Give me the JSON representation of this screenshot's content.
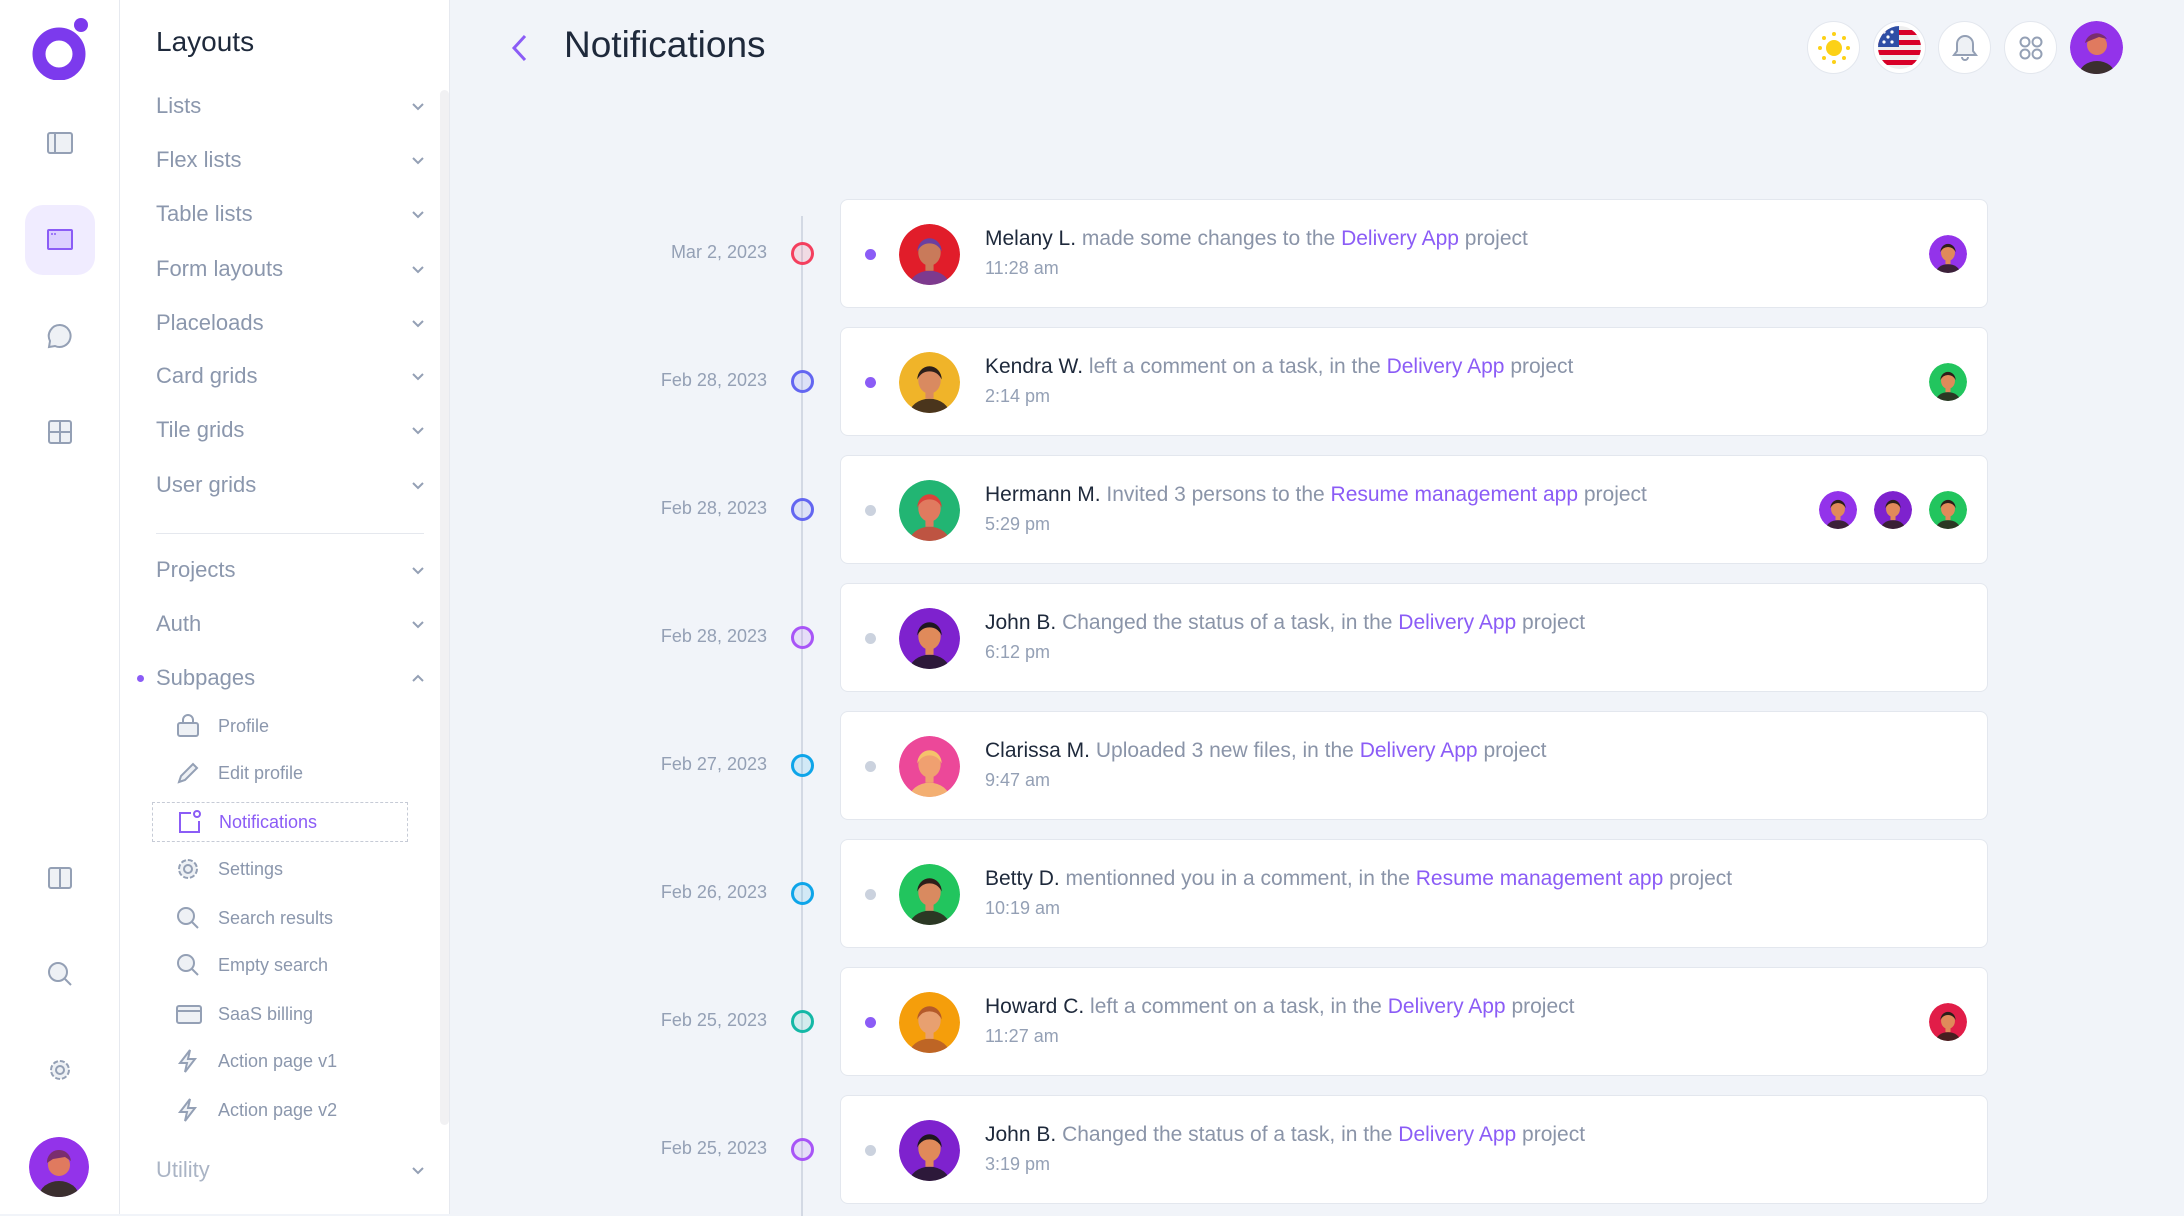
{
  "sidebar": {
    "title": "Layouts",
    "items": [
      {
        "label": "Lists"
      },
      {
        "label": "Flex lists"
      },
      {
        "label": "Table lists"
      },
      {
        "label": "Form layouts"
      },
      {
        "label": "Placeloads"
      },
      {
        "label": "Card grids"
      },
      {
        "label": "Tile grids"
      },
      {
        "label": "User grids"
      }
    ],
    "items2": [
      {
        "label": "Projects"
      },
      {
        "label": "Auth"
      },
      {
        "label": "Subpages"
      }
    ],
    "subpages": [
      {
        "label": "Profile",
        "icon": "lock-icon"
      },
      {
        "label": "Edit profile",
        "icon": "pencil-icon"
      },
      {
        "label": "Notifications",
        "icon": "notification-icon",
        "active": true
      },
      {
        "label": "Settings",
        "icon": "gear-icon"
      },
      {
        "label": "Search results",
        "icon": "search-icon"
      },
      {
        "label": "Empty search",
        "icon": "search-icon"
      },
      {
        "label": "SaaS billing",
        "icon": "credit-card-icon"
      },
      {
        "label": "Action page v1",
        "icon": "lightning-icon"
      },
      {
        "label": "Action page v2",
        "icon": "lightning-icon"
      }
    ],
    "utility": "Utility"
  },
  "header": {
    "title": "Notifications",
    "icons": [
      "sun-icon",
      "us-flag-icon",
      "bell-icon",
      "apps-icon",
      "user-avatar"
    ]
  },
  "colors": {
    "accent": "#8b5cf6",
    "unread": "#8b5cf6",
    "read": "#cbd2de"
  },
  "notifications": [
    {
      "date": "Mar 2, 2023",
      "ring": "#f43f5e",
      "unread": true,
      "actor": "Melany L.",
      "action": "made some changes to the",
      "link": "Delivery App",
      "suffix": "project",
      "time": "11:28 am",
      "avatar": "#e11d2a",
      "skin": "#c97a5a",
      "hair": "#6b3fa0",
      "people": [
        "#9333ea"
      ]
    },
    {
      "date": "Feb 28, 2023",
      "ring": "#6366f1",
      "unread": true,
      "actor": "Kendra W.",
      "action": "left a comment on a task, in the",
      "link": "Delivery App",
      "suffix": "project",
      "time": "2:14 pm",
      "avatar": "#f0b429",
      "skin": "#d98a60",
      "hair": "#2d1f1a",
      "people": [
        "#22c55e"
      ]
    },
    {
      "date": "Feb 28, 2023",
      "ring": "#6366f1",
      "unread": false,
      "actor": "Hermann M.",
      "action": "Invited 3 persons to the",
      "link": "Resume management app",
      "suffix": "project",
      "time": "5:29 pm",
      "avatar": "#22b573",
      "skin": "#e07a5f",
      "hair": "#d9433a",
      "people": [
        "#9333ea",
        "#7e22ce",
        "#22c55e"
      ]
    },
    {
      "date": "Feb 28, 2023",
      "ring": "#a855f7",
      "unread": false,
      "actor": "John B.",
      "action": "Changed the status of a task, in the",
      "link": "Delivery App",
      "suffix": "project",
      "time": "6:12 pm",
      "avatar": "#7e22ce",
      "skin": "#e08a5a",
      "hair": "#1f1720",
      "people": []
    },
    {
      "date": "Feb 27, 2023",
      "ring": "#0ea5e9",
      "unread": false,
      "actor": "Clarissa M.",
      "action": "Uploaded 3 new files, in the",
      "link": "Delivery App",
      "suffix": "project",
      "time": "9:47 am",
      "avatar": "#ec4899",
      "skin": "#f0a070",
      "hair": "#f5c26b",
      "people": []
    },
    {
      "date": "Feb 26, 2023",
      "ring": "#0ea5e9",
      "unread": false,
      "actor": "Betty D.",
      "action": "mentionned you in a comment, in the",
      "link": "Resume management app",
      "suffix": "project",
      "time": "10:19 am",
      "avatar": "#22c55e",
      "skin": "#d98a60",
      "hair": "#2d1f1a",
      "people": []
    },
    {
      "date": "Feb 25, 2023",
      "ring": "#14b8a6",
      "unread": true,
      "actor": "Howard C.",
      "action": "left a comment on a task, in the",
      "link": "Delivery App",
      "suffix": "project",
      "time": "11:27 am",
      "avatar": "#f59e0b",
      "skin": "#e8a070",
      "hair": "#b45a2a",
      "people": [
        "#e11d48"
      ]
    },
    {
      "date": "Feb 25, 2023",
      "ring": "#a855f7",
      "unread": false,
      "actor": "John B.",
      "action": "Changed the status of a task, in the",
      "link": "Delivery App",
      "suffix": "project",
      "time": "3:19 pm",
      "avatar": "#7e22ce",
      "skin": "#e08a5a",
      "hair": "#1f1720",
      "people": []
    }
  ]
}
